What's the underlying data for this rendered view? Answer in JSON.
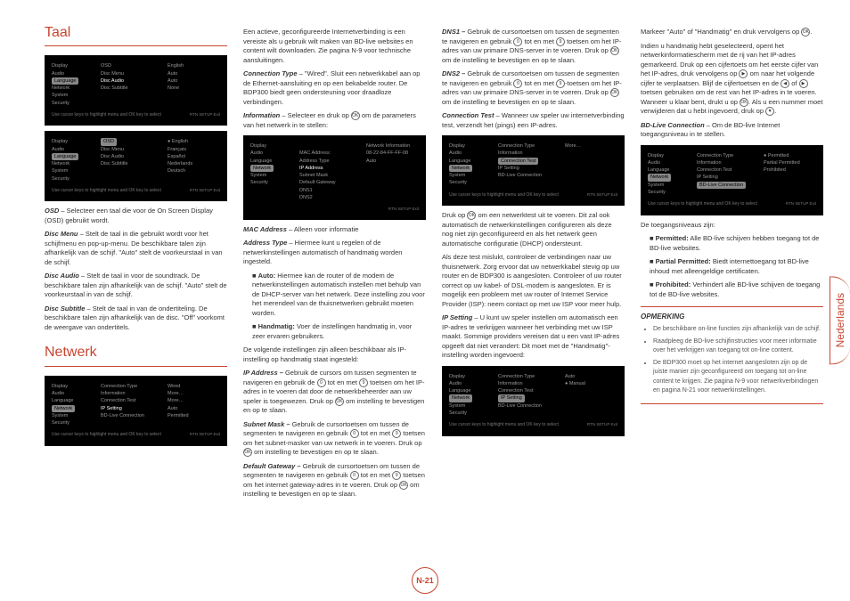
{
  "col1": {
    "h1a": "Taal",
    "menu1": {
      "rows": [
        [
          "Display",
          "OSD",
          "English"
        ],
        [
          "Audio",
          "Disc Menu",
          "Auto"
        ],
        [
          "Language",
          "Disc Audio",
          "Auto"
        ],
        [
          "Network",
          "Disc Subtitle",
          "None"
        ],
        [
          "System",
          "",
          ""
        ],
        [
          "Security",
          "",
          ""
        ]
      ],
      "hl": 2,
      "foot": "Use cursor keys to highlight menu and OK key to select",
      "footr": "RTN  SETUP  Exit"
    },
    "menu2": {
      "rows": [
        [
          "Display",
          "OSD",
          "● English"
        ],
        [
          "Audio",
          "Disc Menu",
          "Français"
        ],
        [
          "Language",
          "Disc Audio",
          "Español"
        ],
        [
          "Network",
          "Disc Subtitle",
          "Nederlands"
        ],
        [
          "System",
          "",
          "Deutsch"
        ],
        [
          "Security",
          "",
          ""
        ]
      ],
      "hl": 2,
      "selc2": 0,
      "foot": "Use cursor keys to highlight menu and OK key to select",
      "footr": "RTN  SETUP  Exit"
    },
    "p1a": "OSD",
    "p1b": " – Selecteer een taal die voor de On Screen Display (OSD) gebruikt wordt.",
    "p2a": "Disc Menu",
    "p2b": " – Stelt de taal in die gebruikt wordt voor het schijfmenu en pop-up-menu. De beschikbare talen zijn afhankelijk van de schijf. \"Auto\" stelt de voorkeurstaal in van de schijf.",
    "p3a": "Disc Audio",
    "p3b": " – Stelt de taal in voor de soundtrack. De beschikbare talen zijn afhankelijk van de schijf. \"Auto\" stelt de voorkeurstaal in van de schijf.",
    "p4a": "Disc Subtitle",
    "p4b": " – Stelt de taal in van de ondertiteling. De beschikbare talen zijn afhankelijk van de disc. \"Off\" voorkomt de weergave van ondertitels.",
    "h1b": "Netwerk",
    "menu3": {
      "rows": [
        [
          "Display",
          "Connection Type",
          "Wired"
        ],
        [
          "Audio",
          "Information",
          "More…"
        ],
        [
          "Language",
          "Connection Test",
          "More…"
        ],
        [
          "Network",
          "IP Setting",
          "Auto"
        ],
        [
          "System",
          "BD-Live Connection",
          "Permitted"
        ],
        [
          "Security",
          "",
          ""
        ]
      ],
      "hl": 3,
      "foot": "Use cursor keys to highlight menu and OK key to select",
      "footr": "RTN  SETUP  Exit"
    }
  },
  "col2": {
    "p1": "Een actieve, geconfigureerde Internetverbinding is een vereiste als u gebruik wilt maken van BD-live websites en content wilt downloaden. Zie pagina N-9 voor technische aansluitingen.",
    "p2a": "Connection Type",
    "p2b": " – \"Wired\". Sluit een netwerkkabel aan op de Ethernet-aansluiting en op een bekabelde router. De BDP300 biedt geen ondersteuning voor draadloze verbindingen.",
    "p3a": "Information",
    "p3b": " – Selecteer en druk op ",
    "p3c": " om de parameters van het netwerk in te stellen:",
    "menu4": {
      "rows": [
        [
          "Display",
          "",
          "Network Information"
        ],
        [
          "Audio",
          "MAC Address:",
          "08-22-84-FF-FF-08"
        ],
        [
          "Language",
          "Address Type",
          "Auto"
        ],
        [
          "Network",
          "IP Address",
          ""
        ],
        [
          "System",
          "Subnet Mask",
          ""
        ],
        [
          "Security",
          "Default Gateway",
          ""
        ],
        [
          "",
          "DNS1",
          ""
        ],
        [
          "",
          "DNS2",
          ""
        ]
      ],
      "hl": 3,
      "title": "Network Information",
      "foot": "",
      "footr": "RTN  SETUP  Exit"
    },
    "p4a": "MAC Address",
    "p4b": " – Alleen voor informatie",
    "p5a": "Address Type",
    "p5b": " – Hiermee kunt u regelen of de netwerkinstellingen automatisch of handmatig worden ingesteld.",
    "p6a": "Auto:",
    "p6b": " Hiermee kan de router of de modem de netwerkinstellingen automatisch instellen met behulp van de DHCP-server van het netwerk. Deze instelling zou voor het merendeel van de thuisnetwerken gebruikt moeten worden.",
    "p7a": "Handmatig:",
    "p7b": " Voer de instellingen handmatig in, voor zeer ervaren gebruikers.",
    "p8": "De volgende instellingen zijn alleen beschikbaar als IP-instelling op handmatig staat ingesteld:",
    "p9a": "IP Address –",
    "p9b": " Gebruik de cursors om tussen segmenten te navigeren en gebruik de ",
    "p9c": " tot en met ",
    "p9d": " toetsen om het IP-adres in te voeren dat door de netwerkbeheerder aan uw speler is toegewezen. Druk op ",
    "p9e": " om instelling te bevestigen en op te slaan.",
    "p10a": "Subnet Mask –",
    "p10b": " Gebruik de cursortoetsen om tussen de segmenten te navigeren en gebruik ",
    "p10c": " tot en met ",
    "p10d": " toetsen om het subnet-masker van uw netwerk in te voeren. Druk op ",
    "p10e": " om instelling te bevestigen en op te slaan.",
    "p11a": "Default Gateway –",
    "p11b": " Gebruik de cursortoetsen om tussen de segmenten te navigeren en gebruik ",
    "p11c": " tot en met ",
    "p11d": " toetsen om het internet gateway-adres in te voeren. Druk op ",
    "p11e": " om instelling te bevestigen en op te slaan."
  },
  "col3": {
    "p1a": "DNS1 –",
    "p1b": " Gebruik de cursortoetsen om tussen de segmenten te navigeren en gebruik ",
    "p1c": " tot en met ",
    "p1d": " toetsen om het IP-adres van uw primaire DNS-server in te voeren. Druk op ",
    "p1e": " om de instelling te bevestigen en op te slaan.",
    "p2a": "DNS2 –",
    "p2b": " Gebruik de cursortoetsen om tussen de segmenten te navigeren en gebruik ",
    "p2c": " tot en met ",
    "p2d": "-toetsen om het IP-adres van uw primaire DNS-server in te voeren. Druk op ",
    "p2e": " om de instelling te bevestigen en op te slaan.",
    "p3a": "Connection Test",
    "p3b": " – Wanneer uw speler uw internetverbinding test, verzendt het (pings) een IP-adres.",
    "menu5": {
      "rows": [
        [
          "Display",
          "Connection Type",
          "More…"
        ],
        [
          "Audio",
          "Information",
          ""
        ],
        [
          "Language",
          "Connection Test",
          ""
        ],
        [
          "Network",
          "IP Setting",
          ""
        ],
        [
          "System",
          "BD-Live Connection",
          ""
        ],
        [
          "Security",
          "",
          ""
        ]
      ],
      "hl": 3,
      "selc2": 2,
      "foot": "Use cursor keys to highlight menu and OK key to select",
      "footr": "RTN  SETUP  Exit"
    },
    "p4": "Druk op ",
    "p4b": " om een netwerktest uit te voeren. Dit zal ook automatisch de netwerkinstellingen configureren als deze nog niet zijn geconfigureerd en als het netwerk geen automatische configuratie (DHCP) ondersteunt.",
    "p5": "Als deze test mislukt, controleer de verbindingen naar uw thuisnetwerk. Zorg ervoor dat uw netwerkkabel stevig op uw router en de BDP300 is aangesloten. Controleer of uw router correct op uw kabel- of DSL-modem is aangesloten. Er is mogelijk een probleem met uw router of Internet Service Provider (ISP): neem contact op met uw ISP voor meer hulp.",
    "p6a": "IP Setting",
    "p6b": " – U kunt uw speler instellen om automatisch een IP-adres te verkrijgen wanneer het verbinding met uw ISP maakt. Sommige providers vereisen dat u een vast IP-adres opgeeft dat niet verandert: Dit moet met de \"Handmatig\"-instelling worden ingevoerd:",
    "menu6": {
      "rows": [
        [
          "Display",
          "Connection Type",
          "Auto"
        ],
        [
          "Audio",
          "Information",
          "● Manual"
        ],
        [
          "Language",
          "Connection Test",
          ""
        ],
        [
          "Network",
          "IP Setting",
          ""
        ],
        [
          "System",
          "BD-Live Connection",
          ""
        ],
        [
          "Security",
          "",
          ""
        ]
      ],
      "hl": 3,
      "selc2": 3,
      "foot": "Use cursor keys to highlight menu and OK key to select",
      "footr": "RTN  SETUP  Exit"
    }
  },
  "col4": {
    "p1": "Markeer \"Auto\" of \"Handmatig\" en druk vervolgens op ",
    "p2": "Indien u handmatig hebt geselecteerd, opent het netwerkinformatiescherm met de rij van het IP-adres gemarkeerd. Druk op een cijfertoets om het eerste cijfer van het IP-adres, druk vervolgens op ",
    "p2b": " om naar het volgende cijfer te verplaatsen. Blijf de cijfertoetsen en de ",
    "p2c": " of ",
    "p2d": " toetsen gebruiken om de rest van het IP-adres in te voeren. Wanneer u klaar bent, drukt u op ",
    "p2e": ". Als u een nummer moet verwijderen dat u hebt ingevoerd, druk op ",
    "p3a": "BD-Live Connection",
    "p3b": " – Om de BD-live Internet toegangsniveau in te stellen.",
    "menu7": {
      "rows": [
        [
          "Display",
          "Connection Type",
          "● Permitted"
        ],
        [
          "Audio",
          "Information",
          "Partial Permitted"
        ],
        [
          "Language",
          "Connection Test",
          "Prohibited"
        ],
        [
          "Network",
          "IP Setting",
          ""
        ],
        [
          "System",
          "BD-Live Connection",
          ""
        ],
        [
          "Security",
          "",
          ""
        ]
      ],
      "hl": 3,
      "selc2": 4,
      "foot": "Use cursor keys to highlight menu and OK key to select",
      "footr": "RTN  SETUP  Exit"
    },
    "p4": "De toegangsniveaus zijn:",
    "p5a": "Permitted:",
    "p5b": " Alle BD-live schijven hebben toegang tot de BD-live websites.",
    "p6a": "Partial Permitted:",
    "p6b": " Biedt internettoegang tot BD-live inhoud met alleengeldige certificaten.",
    "p7a": "Prohibited:",
    "p7b": " Verhindert alle BD-live schijven de toegang tot de BD-live websites.",
    "opmerking": {
      "title": "OPMERKING",
      "items": [
        "De beschikbare on-line functies zijn afhankelijk van de schijf.",
        "Raadpleeg de BD-live schijfinstructies voor meer informatie over het verkrijgen van toegang tot on-line content.",
        "De BDP300 moet op het internet aangesloten zijn op de juiste manier zijn geconfigureerd om toegang tot on-line content te krijgen. Zie pagina N-9 voor netwerkverbindingen en pagina N-21 voor netwerkinstellingen."
      ]
    }
  },
  "tab": "Nederlands",
  "pagenum": "N-21",
  "ok": "OK",
  "b0": "0",
  "b9": "9"
}
